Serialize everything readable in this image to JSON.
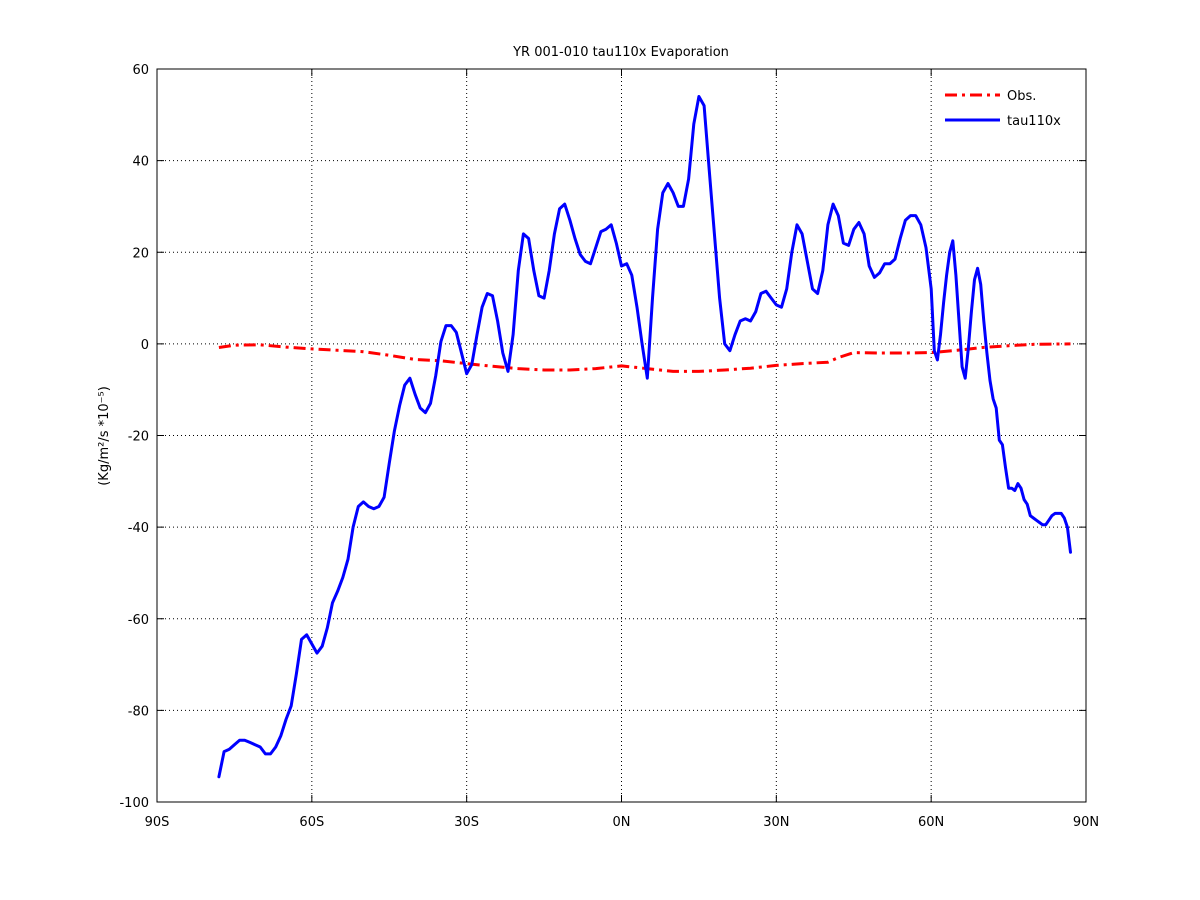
{
  "chart_data": {
    "type": "line",
    "title": "YR 001-010 tau110x Evaporation",
    "ylabel": "(Kg/m²/s *10⁻⁵)",
    "xlabel": "",
    "xlim": [
      -90,
      90
    ],
    "ylim": [
      -100,
      60
    ],
    "x_ticks": [
      -90,
      -60,
      -30,
      0,
      30,
      60,
      90
    ],
    "x_tick_labels": [
      "90S",
      "60S",
      "30S",
      "0N",
      "30N",
      "60N",
      "90N"
    ],
    "y_ticks": [
      -100,
      -80,
      -60,
      -40,
      -20,
      0,
      20,
      40,
      60
    ],
    "y_tick_labels": [
      "-100",
      "-80",
      "-60",
      "-40",
      "-20",
      "0",
      "20",
      "40",
      "60"
    ],
    "grid": true,
    "legend_position": "top-right",
    "series": [
      {
        "name": "Obs.",
        "color": "#ff0000",
        "style": "dash-dot",
        "points": [
          [
            -78,
            -0.8
          ],
          [
            -75,
            -0.3
          ],
          [
            -70,
            -0.2
          ],
          [
            -65,
            -0.7
          ],
          [
            -60,
            -1.1
          ],
          [
            -55,
            -1.4
          ],
          [
            -50,
            -1.7
          ],
          [
            -45,
            -2.5
          ],
          [
            -40,
            -3.4
          ],
          [
            -35,
            -3.7
          ],
          [
            -30,
            -4.3
          ],
          [
            -25,
            -4.9
          ],
          [
            -20,
            -5.4
          ],
          [
            -15,
            -5.7
          ],
          [
            -10,
            -5.7
          ],
          [
            -5,
            -5.4
          ],
          [
            0,
            -4.8
          ],
          [
            5,
            -5.4
          ],
          [
            10,
            -6.0
          ],
          [
            15,
            -6.0
          ],
          [
            20,
            -5.7
          ],
          [
            25,
            -5.3
          ],
          [
            30,
            -4.7
          ],
          [
            35,
            -4.3
          ],
          [
            40,
            -4.0
          ],
          [
            42,
            -3.0
          ],
          [
            45,
            -1.9
          ],
          [
            50,
            -2.0
          ],
          [
            55,
            -2.0
          ],
          [
            60,
            -1.9
          ],
          [
            65,
            -1.4
          ],
          [
            70,
            -0.8
          ],
          [
            75,
            -0.4
          ],
          [
            80,
            -0.1
          ],
          [
            87,
            0.0
          ]
        ]
      },
      {
        "name": "tau110x",
        "color": "#0000ff",
        "style": "solid",
        "points": [
          [
            -78,
            -94.5
          ],
          [
            -77,
            -89
          ],
          [
            -76,
            -88.5
          ],
          [
            -75,
            -87.5
          ],
          [
            -74,
            -86.5
          ],
          [
            -73,
            -86.5
          ],
          [
            -72,
            -87
          ],
          [
            -71,
            -87.5
          ],
          [
            -70,
            -88
          ],
          [
            -69,
            -89.5
          ],
          [
            -68,
            -89.5
          ],
          [
            -67,
            -88
          ],
          [
            -66,
            -85.5
          ],
          [
            -65,
            -82
          ],
          [
            -64,
            -79
          ],
          [
            -63,
            -72
          ],
          [
            -62,
            -64.5
          ],
          [
            -61,
            -63.5
          ],
          [
            -60,
            -65.5
          ],
          [
            -59,
            -67.5
          ],
          [
            -58,
            -66
          ],
          [
            -57,
            -62
          ],
          [
            -56,
            -56.5
          ],
          [
            -55,
            -54
          ],
          [
            -54,
            -51
          ],
          [
            -53,
            -47
          ],
          [
            -52,
            -40
          ],
          [
            -51,
            -35.5
          ],
          [
            -50,
            -34.5
          ],
          [
            -49,
            -35.5
          ],
          [
            -48,
            -36
          ],
          [
            -47,
            -35.5
          ],
          [
            -46,
            -33.5
          ],
          [
            -45,
            -26
          ],
          [
            -44,
            -19
          ],
          [
            -43,
            -13.5
          ],
          [
            -42,
            -9
          ],
          [
            -41,
            -7.5
          ],
          [
            -40,
            -11
          ],
          [
            -39,
            -14
          ],
          [
            -38,
            -15
          ],
          [
            -37,
            -13
          ],
          [
            -36,
            -7
          ],
          [
            -35,
            0.5
          ],
          [
            -34,
            4
          ],
          [
            -33,
            4
          ],
          [
            -32,
            2.5
          ],
          [
            -31,
            -2
          ],
          [
            -30,
            -6.5
          ],
          [
            -29,
            -4.5
          ],
          [
            -28,
            2
          ],
          [
            -27,
            8
          ],
          [
            -26,
            11
          ],
          [
            -25,
            10.5
          ],
          [
            -24,
            5
          ],
          [
            -23,
            -2
          ],
          [
            -22,
            -6
          ],
          [
            -21,
            2
          ],
          [
            -20,
            16
          ],
          [
            -19,
            24
          ],
          [
            -18,
            23
          ],
          [
            -17,
            16
          ],
          [
            -16,
            10.5
          ],
          [
            -15,
            10
          ],
          [
            -14,
            16
          ],
          [
            -13,
            24
          ],
          [
            -12,
            29.5
          ],
          [
            -11,
            30.5
          ],
          [
            -10,
            27
          ],
          [
            -9,
            23
          ],
          [
            -8,
            19.5
          ],
          [
            -7,
            18
          ],
          [
            -6,
            17.5
          ],
          [
            -5,
            21
          ],
          [
            -4,
            24.5
          ],
          [
            -3,
            25
          ],
          [
            -2,
            26
          ],
          [
            -1,
            22
          ],
          [
            0,
            17
          ],
          [
            1,
            17.5
          ],
          [
            2,
            15
          ],
          [
            3,
            8
          ],
          [
            4,
            0
          ],
          [
            5,
            -7.5
          ],
          [
            6,
            10
          ],
          [
            7,
            25
          ],
          [
            8,
            33
          ],
          [
            9,
            35
          ],
          [
            10,
            33
          ],
          [
            11,
            30
          ],
          [
            12,
            30
          ],
          [
            13,
            36
          ],
          [
            14,
            48
          ],
          [
            15,
            54
          ],
          [
            16,
            52
          ],
          [
            17,
            38
          ],
          [
            18,
            24
          ],
          [
            19,
            10
          ],
          [
            20,
            0
          ],
          [
            21,
            -1.5
          ],
          [
            22,
            2
          ],
          [
            23,
            5
          ],
          [
            24,
            5.5
          ],
          [
            25,
            5
          ],
          [
            26,
            7
          ],
          [
            27,
            11
          ],
          [
            28,
            11.5
          ],
          [
            29,
            10
          ],
          [
            30,
            8.5
          ],
          [
            31,
            8
          ],
          [
            32,
            12
          ],
          [
            33,
            20
          ],
          [
            34,
            26
          ],
          [
            35,
            24
          ],
          [
            36,
            18
          ],
          [
            37,
            12
          ],
          [
            38,
            11
          ],
          [
            39,
            16
          ],
          [
            40,
            26
          ],
          [
            41,
            30.5
          ],
          [
            42,
            28
          ],
          [
            43,
            22
          ],
          [
            44,
            21.5
          ],
          [
            45,
            25
          ],
          [
            46,
            26.5
          ],
          [
            47,
            24
          ],
          [
            48,
            17
          ],
          [
            49,
            14.5
          ],
          [
            50,
            15.5
          ],
          [
            51,
            17.5
          ],
          [
            52,
            17.5
          ],
          [
            53,
            18.5
          ],
          [
            54,
            23
          ],
          [
            55,
            27
          ],
          [
            56,
            28
          ],
          [
            57,
            28
          ],
          [
            58,
            26
          ],
          [
            59,
            21
          ],
          [
            60,
            12
          ],
          [
            61,
            -1.5
          ],
          [
            62,
            -3.5
          ],
          [
            63,
            2
          ],
          [
            64,
            9
          ],
          [
            65,
            15
          ],
          [
            66,
            20
          ],
          [
            67,
            22.5
          ],
          [
            68,
            15
          ],
          [
            69,
            5
          ],
          [
            70,
            -5
          ],
          [
            71,
            -7.5
          ],
          [
            72,
            -1
          ],
          [
            73,
            7
          ],
          [
            74,
            14
          ],
          [
            75,
            16.5
          ],
          [
            76,
            13
          ],
          [
            77,
            5
          ],
          [
            78,
            -2
          ],
          [
            79,
            -8
          ],
          [
            80,
            -12
          ],
          [
            81,
            -14
          ],
          [
            82,
            -21
          ],
          [
            83,
            -22
          ],
          [
            84,
            -27
          ],
          [
            85,
            -31.5
          ],
          [
            86,
            -31.5
          ],
          [
            87,
            -32
          ],
          [
            88,
            -30.5
          ],
          [
            89,
            -31.5
          ],
          [
            90,
            -34
          ],
          [
            91,
            -35
          ],
          [
            92,
            -37.5
          ],
          [
            93,
            -38
          ],
          [
            94,
            -38.5
          ],
          [
            95,
            -39
          ],
          [
            96,
            -39.5
          ],
          [
            97,
            -39.5
          ],
          [
            98,
            -38.5
          ],
          [
            99,
            -37.5
          ],
          [
            100,
            -37
          ],
          [
            101,
            -37
          ],
          [
            102,
            -37
          ],
          [
            103,
            -38
          ],
          [
            104,
            -40
          ],
          [
            105,
            -45.5
          ]
        ]
      }
    ]
  }
}
